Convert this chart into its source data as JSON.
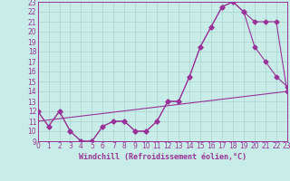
{
  "xlabel": "Windchill (Refroidissement éolien,°C)",
  "xlim": [
    0,
    23
  ],
  "ylim": [
    9,
    23
  ],
  "xticks": [
    0,
    1,
    2,
    3,
    4,
    5,
    6,
    7,
    8,
    9,
    10,
    11,
    12,
    13,
    14,
    15,
    16,
    17,
    18,
    19,
    20,
    21,
    22,
    23
  ],
  "yticks": [
    9,
    10,
    11,
    12,
    13,
    14,
    15,
    16,
    17,
    18,
    19,
    20,
    21,
    22,
    23
  ],
  "background_color": "#c8ece8",
  "grid_color": "#aad4cc",
  "line_color": "#993399",
  "line1_x": [
    0,
    1,
    2,
    3,
    4,
    5,
    6,
    7,
    8,
    9,
    10,
    11,
    12,
    13,
    14,
    15,
    16,
    17,
    18,
    19,
    20,
    21,
    22,
    23
  ],
  "line1_y": [
    12,
    10.5,
    12,
    10,
    9,
    9,
    10.5,
    11,
    11,
    10,
    10,
    11,
    13,
    13,
    15.5,
    18.5,
    20.5,
    22.5,
    23,
    22,
    18.5,
    17,
    15.5,
    14.5
  ],
  "line2_x": [
    0,
    1,
    2,
    3,
    4,
    5,
    6,
    7,
    8,
    9,
    10,
    11,
    12,
    13,
    14,
    15,
    16,
    17,
    18,
    19,
    20,
    21,
    22,
    23
  ],
  "line2_y": [
    12,
    10.5,
    12,
    10,
    9,
    9,
    10.5,
    11,
    11,
    10,
    10,
    11,
    13,
    13,
    15.5,
    18.5,
    20.5,
    22.5,
    23,
    22,
    21,
    21,
    21,
    14
  ],
  "line3_x": [
    0,
    23
  ],
  "line3_y": [
    11,
    14
  ],
  "fontsize_xlabel": 6,
  "fontsize_ticks": 5.5,
  "marker_size": 2.5,
  "line_width": 0.8
}
